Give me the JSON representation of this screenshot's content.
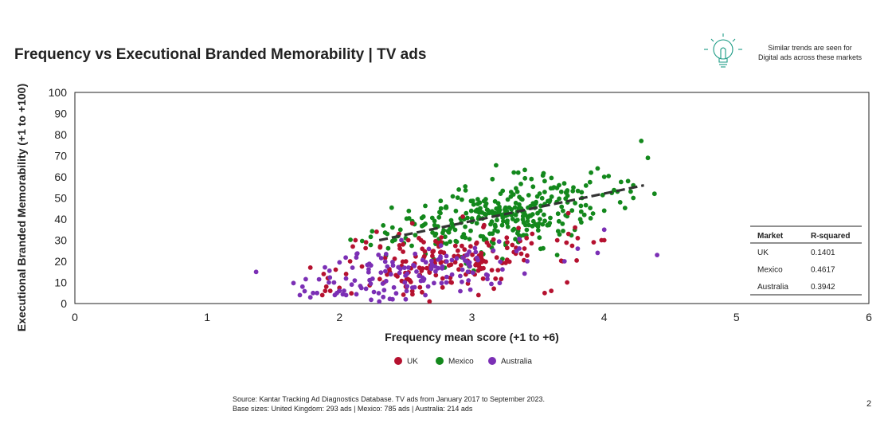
{
  "title": "Frequency vs Executional Branded Memorability | TV ads",
  "note": {
    "line1": "Similar trends are seen for",
    "line2": "Digital ads across these markets",
    "icon": "lightbulb-icon"
  },
  "source": {
    "line1": "Source: Kantar Tracking Ad Diagnostics Database. TV ads from January 2017 to September 2023.",
    "line2": "Base sizes: United Kingdom: 293 ads | Mexico: 785 ads | Australia: 214 ads"
  },
  "page_number": "2",
  "chart_data": {
    "type": "scatter",
    "title": "Frequency vs Executional Branded Memorability | TV ads",
    "xlabel": "Frequency mean score (+1 to +6)",
    "ylabel": "Executional Branded Memorability (+1 to +100)",
    "xlim": [
      0,
      6
    ],
    "ylim": [
      0,
      100
    ],
    "xticks": [
      0,
      1,
      2,
      3,
      4,
      5,
      6
    ],
    "yticks": [
      0,
      10,
      20,
      30,
      40,
      50,
      60,
      70,
      80,
      90,
      100
    ],
    "grid": false,
    "legend_position": "bottom",
    "trendline": {
      "x": [
        2.3,
        4.3
      ],
      "y": [
        30,
        56
      ],
      "color": "#333333",
      "style": "dashed"
    },
    "series": [
      {
        "name": "UK",
        "color": "#b5112f",
        "base_size": 293,
        "shown_count": 160,
        "center_x": 2.85,
        "center_y": 20,
        "spread_x": 0.38,
        "spread_y": 7.5,
        "points": [
          [
            1.87,
            4
          ],
          [
            1.88,
            14
          ],
          [
            1.9,
            8
          ],
          [
            1.93,
            6
          ],
          [
            2.05,
            14
          ],
          [
            2.08,
            20
          ],
          [
            2.1,
            27
          ],
          [
            2.12,
            30
          ],
          [
            2.2,
            29
          ],
          [
            2.28,
            34
          ],
          [
            2.38,
            15
          ],
          [
            2.45,
            33
          ],
          [
            2.48,
            28
          ],
          [
            2.52,
            30
          ],
          [
            2.55,
            38
          ],
          [
            2.6,
            31
          ],
          [
            2.68,
            1
          ],
          [
            2.75,
            27
          ],
          [
            3.05,
            4
          ],
          [
            3.55,
            5
          ],
          [
            3.6,
            6
          ],
          [
            3.72,
            10
          ],
          [
            3.73,
            33
          ],
          [
            3.78,
            36
          ],
          [
            3.8,
            31
          ],
          [
            3.92,
            29
          ],
          [
            3.98,
            30
          ],
          [
            4.0,
            30
          ]
        ]
      },
      {
        "name": "Mexico",
        "color": "#13881c",
        "base_size": 785,
        "shown_count": 320,
        "center_x": 3.2,
        "center_y": 41,
        "spread_x": 0.38,
        "spread_y": 8,
        "points": [
          [
            2.33,
            37
          ],
          [
            2.36,
            33
          ],
          [
            2.4,
            36
          ],
          [
            2.46,
            35
          ],
          [
            2.5,
            31
          ],
          [
            2.55,
            39
          ],
          [
            3.35,
            62
          ],
          [
            3.45,
            59
          ],
          [
            3.55,
            58
          ],
          [
            3.9,
            62
          ],
          [
            3.95,
            64
          ],
          [
            4.0,
            60
          ],
          [
            4.1,
            53
          ],
          [
            4.18,
            58
          ],
          [
            4.22,
            56
          ],
          [
            4.2,
            53
          ],
          [
            4.22,
            50
          ],
          [
            4.28,
            77
          ],
          [
            4.33,
            69
          ],
          [
            4.38,
            52
          ],
          [
            4.0,
            44
          ],
          [
            3.85,
            42
          ]
        ]
      },
      {
        "name": "Australia",
        "color": "#7b2fb5",
        "base_size": 214,
        "shown_count": 140,
        "center_x": 2.55,
        "center_y": 15,
        "spread_x": 0.38,
        "spread_y": 6.5,
        "points": [
          [
            1.37,
            15
          ],
          [
            1.7,
            4
          ],
          [
            1.72,
            8
          ],
          [
            1.8,
            5
          ],
          [
            1.83,
            5
          ],
          [
            1.92,
            10
          ],
          [
            1.98,
            5
          ],
          [
            2.0,
            6
          ],
          [
            2.05,
            4
          ],
          [
            2.2,
            7
          ],
          [
            2.3,
            1
          ],
          [
            2.5,
            2
          ],
          [
            3.7,
            20
          ],
          [
            3.8,
            26
          ],
          [
            3.95,
            24
          ],
          [
            4.0,
            35
          ],
          [
            4.4,
            23
          ]
        ]
      }
    ],
    "r_squared_table": {
      "headers": [
        "Market",
        "R-squared"
      ],
      "rows": [
        [
          "UK",
          "0.1401"
        ],
        [
          "Mexico",
          "0.4617"
        ],
        [
          "Australia",
          "0.3942"
        ]
      ]
    }
  }
}
